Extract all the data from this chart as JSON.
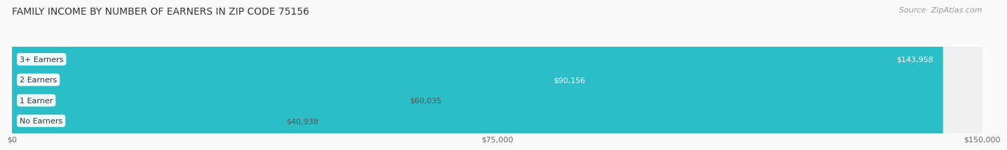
{
  "title": "FAMILY INCOME BY NUMBER OF EARNERS IN ZIP CODE 75156",
  "source": "Source: ZipAtlas.com",
  "categories": [
    "No Earners",
    "1 Earner",
    "2 Earners",
    "3+ Earners"
  ],
  "values": [
    40938,
    60035,
    90156,
    143958
  ],
  "bar_colors": [
    "#F2A0AA",
    "#AABAEA",
    "#C0AACE",
    "#2BBEC8"
  ],
  "bar_track_color": "#EFEFEF",
  "background_color": "#FAFAFA",
  "xmax": 150000,
  "xticks": [
    0,
    75000,
    150000
  ],
  "xtick_labels": [
    "$0",
    "$75,000",
    "$150,000"
  ],
  "value_labels": [
    "$40,938",
    "$60,035",
    "$90,156",
    "$143,958"
  ],
  "value_inside": [
    false,
    false,
    true,
    true
  ],
  "title_fontsize": 10,
  "source_fontsize": 8
}
